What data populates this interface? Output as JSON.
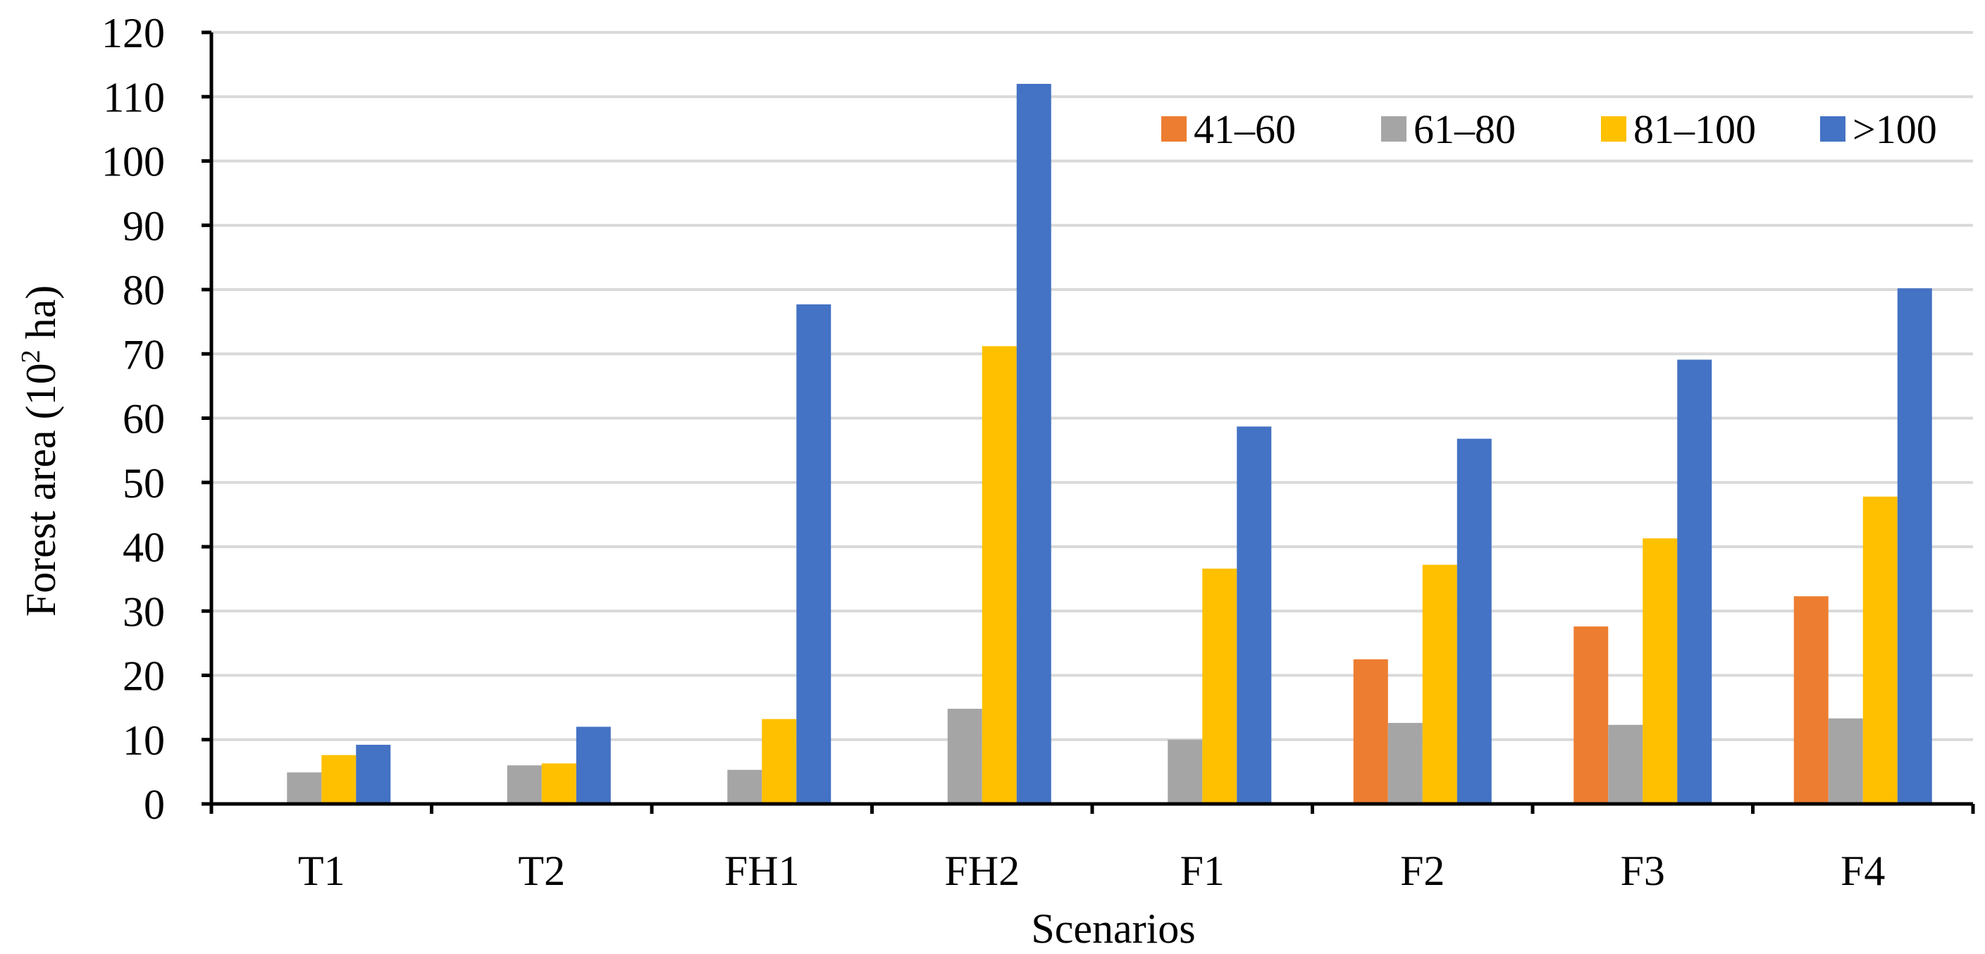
{
  "chart_data": {
    "type": "bar",
    "title": "",
    "xlabel": "Scenarios",
    "ylabel": "Forest area (10² ha)",
    "ylabel_main": "Forest area (10",
    "ylabel_sup": "2",
    "ylabel_tail": " ha)",
    "ylim": [
      0,
      120
    ],
    "yticks": [
      0,
      10,
      20,
      30,
      40,
      50,
      60,
      70,
      80,
      90,
      100,
      110,
      120
    ],
    "grid": true,
    "legend_position": "top-right",
    "categories": [
      "T1",
      "T2",
      "FH1",
      "FH2",
      "F1",
      "F2",
      "F3",
      "F4"
    ],
    "series": [
      {
        "name": "41–60",
        "color": "#ED7D31",
        "values": [
          0,
          0,
          0,
          0,
          0,
          22.5,
          27.6,
          32.3
        ]
      },
      {
        "name": "61–80",
        "color": "#A5A5A5",
        "values": [
          4.9,
          6.0,
          5.3,
          14.8,
          10.0,
          12.6,
          12.3,
          13.3
        ]
      },
      {
        "name": "81–100",
        "color": "#FFC000",
        "values": [
          7.6,
          6.3,
          13.2,
          71.2,
          36.6,
          37.2,
          41.3,
          47.8
        ]
      },
      {
        "name": ">100",
        "color": "#4472C4",
        "values": [
          9.2,
          12.0,
          77.7,
          112.0,
          58.7,
          56.8,
          69.1,
          80.2
        ]
      }
    ]
  }
}
